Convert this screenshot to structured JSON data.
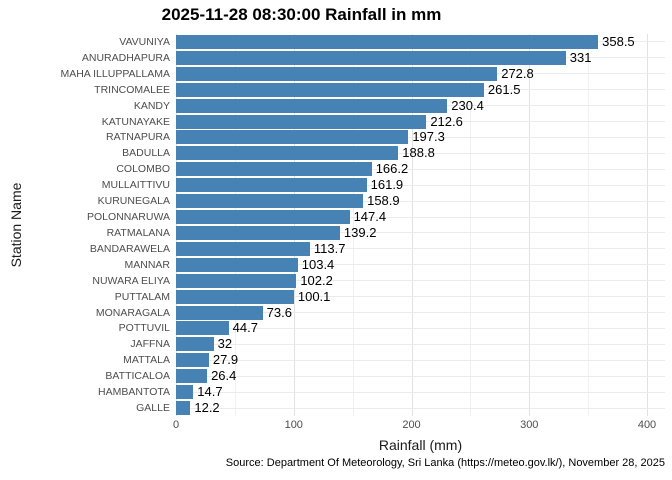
{
  "chart_data": {
    "type": "bar",
    "orientation": "horizontal",
    "title": "2025-11-28 08:30:00 Rainfall in mm",
    "xlabel": "Rainfall (mm)",
    "ylabel": "Station Name",
    "caption": "Source: Department Of Meteorology, Sri Lanka (https://meteo.gov.lk/), November 28, 2025",
    "xlim": [
      0,
      400
    ],
    "x_major_ticks": [
      0,
      100,
      200,
      300,
      400
    ],
    "x_minor_ticks": [
      50,
      150,
      250,
      350
    ],
    "grid": true,
    "legend": "none",
    "bar_color": "#4682B4",
    "categories": [
      "VAVUNIYA",
      "ANURADHAPURA",
      "MAHA ILLUPPALLAMA",
      "TRINCOMALEE",
      "KANDY",
      "KATUNAYAKE",
      "RATNAPURA",
      "BADULLA",
      "COLOMBO",
      "MULLAITTIVU",
      "KURUNEGALA",
      "POLONNARUWA",
      "RATMALANA",
      "BANDARAWELA",
      "MANNAR",
      "NUWARA ELIYA",
      "PUTTALAM",
      "MONARAGALA",
      "POTTUVIL",
      "JAFFNA",
      "MATTALA",
      "BATTICALOA",
      "HAMBANTOTA",
      "GALLE"
    ],
    "values": [
      358.5,
      331,
      272.8,
      261.5,
      230.4,
      212.6,
      197.3,
      188.8,
      166.2,
      161.9,
      158.9,
      147.4,
      139.2,
      113.7,
      103.4,
      102.2,
      100.1,
      73.6,
      44.7,
      32,
      27.9,
      26.4,
      14.7,
      12.2
    ],
    "value_labels": [
      "358.5",
      "331",
      "272.8",
      "261.5",
      "230.4",
      "212.6",
      "197.3",
      "188.8",
      "166.2",
      "161.9",
      "158.9",
      "147.4",
      "139.2",
      "113.7",
      "103.4",
      "102.2",
      "100.1",
      "73.6",
      "44.7",
      "32",
      "27.9",
      "26.4",
      "14.7",
      "12.2"
    ]
  },
  "colors": {
    "bar": "#4682B4",
    "grid_major": "#e2e2e2",
    "grid_minor": "#f0f0f0",
    "axis_text": "#4d4d4d",
    "text": "#000000",
    "background": "#ffffff"
  }
}
